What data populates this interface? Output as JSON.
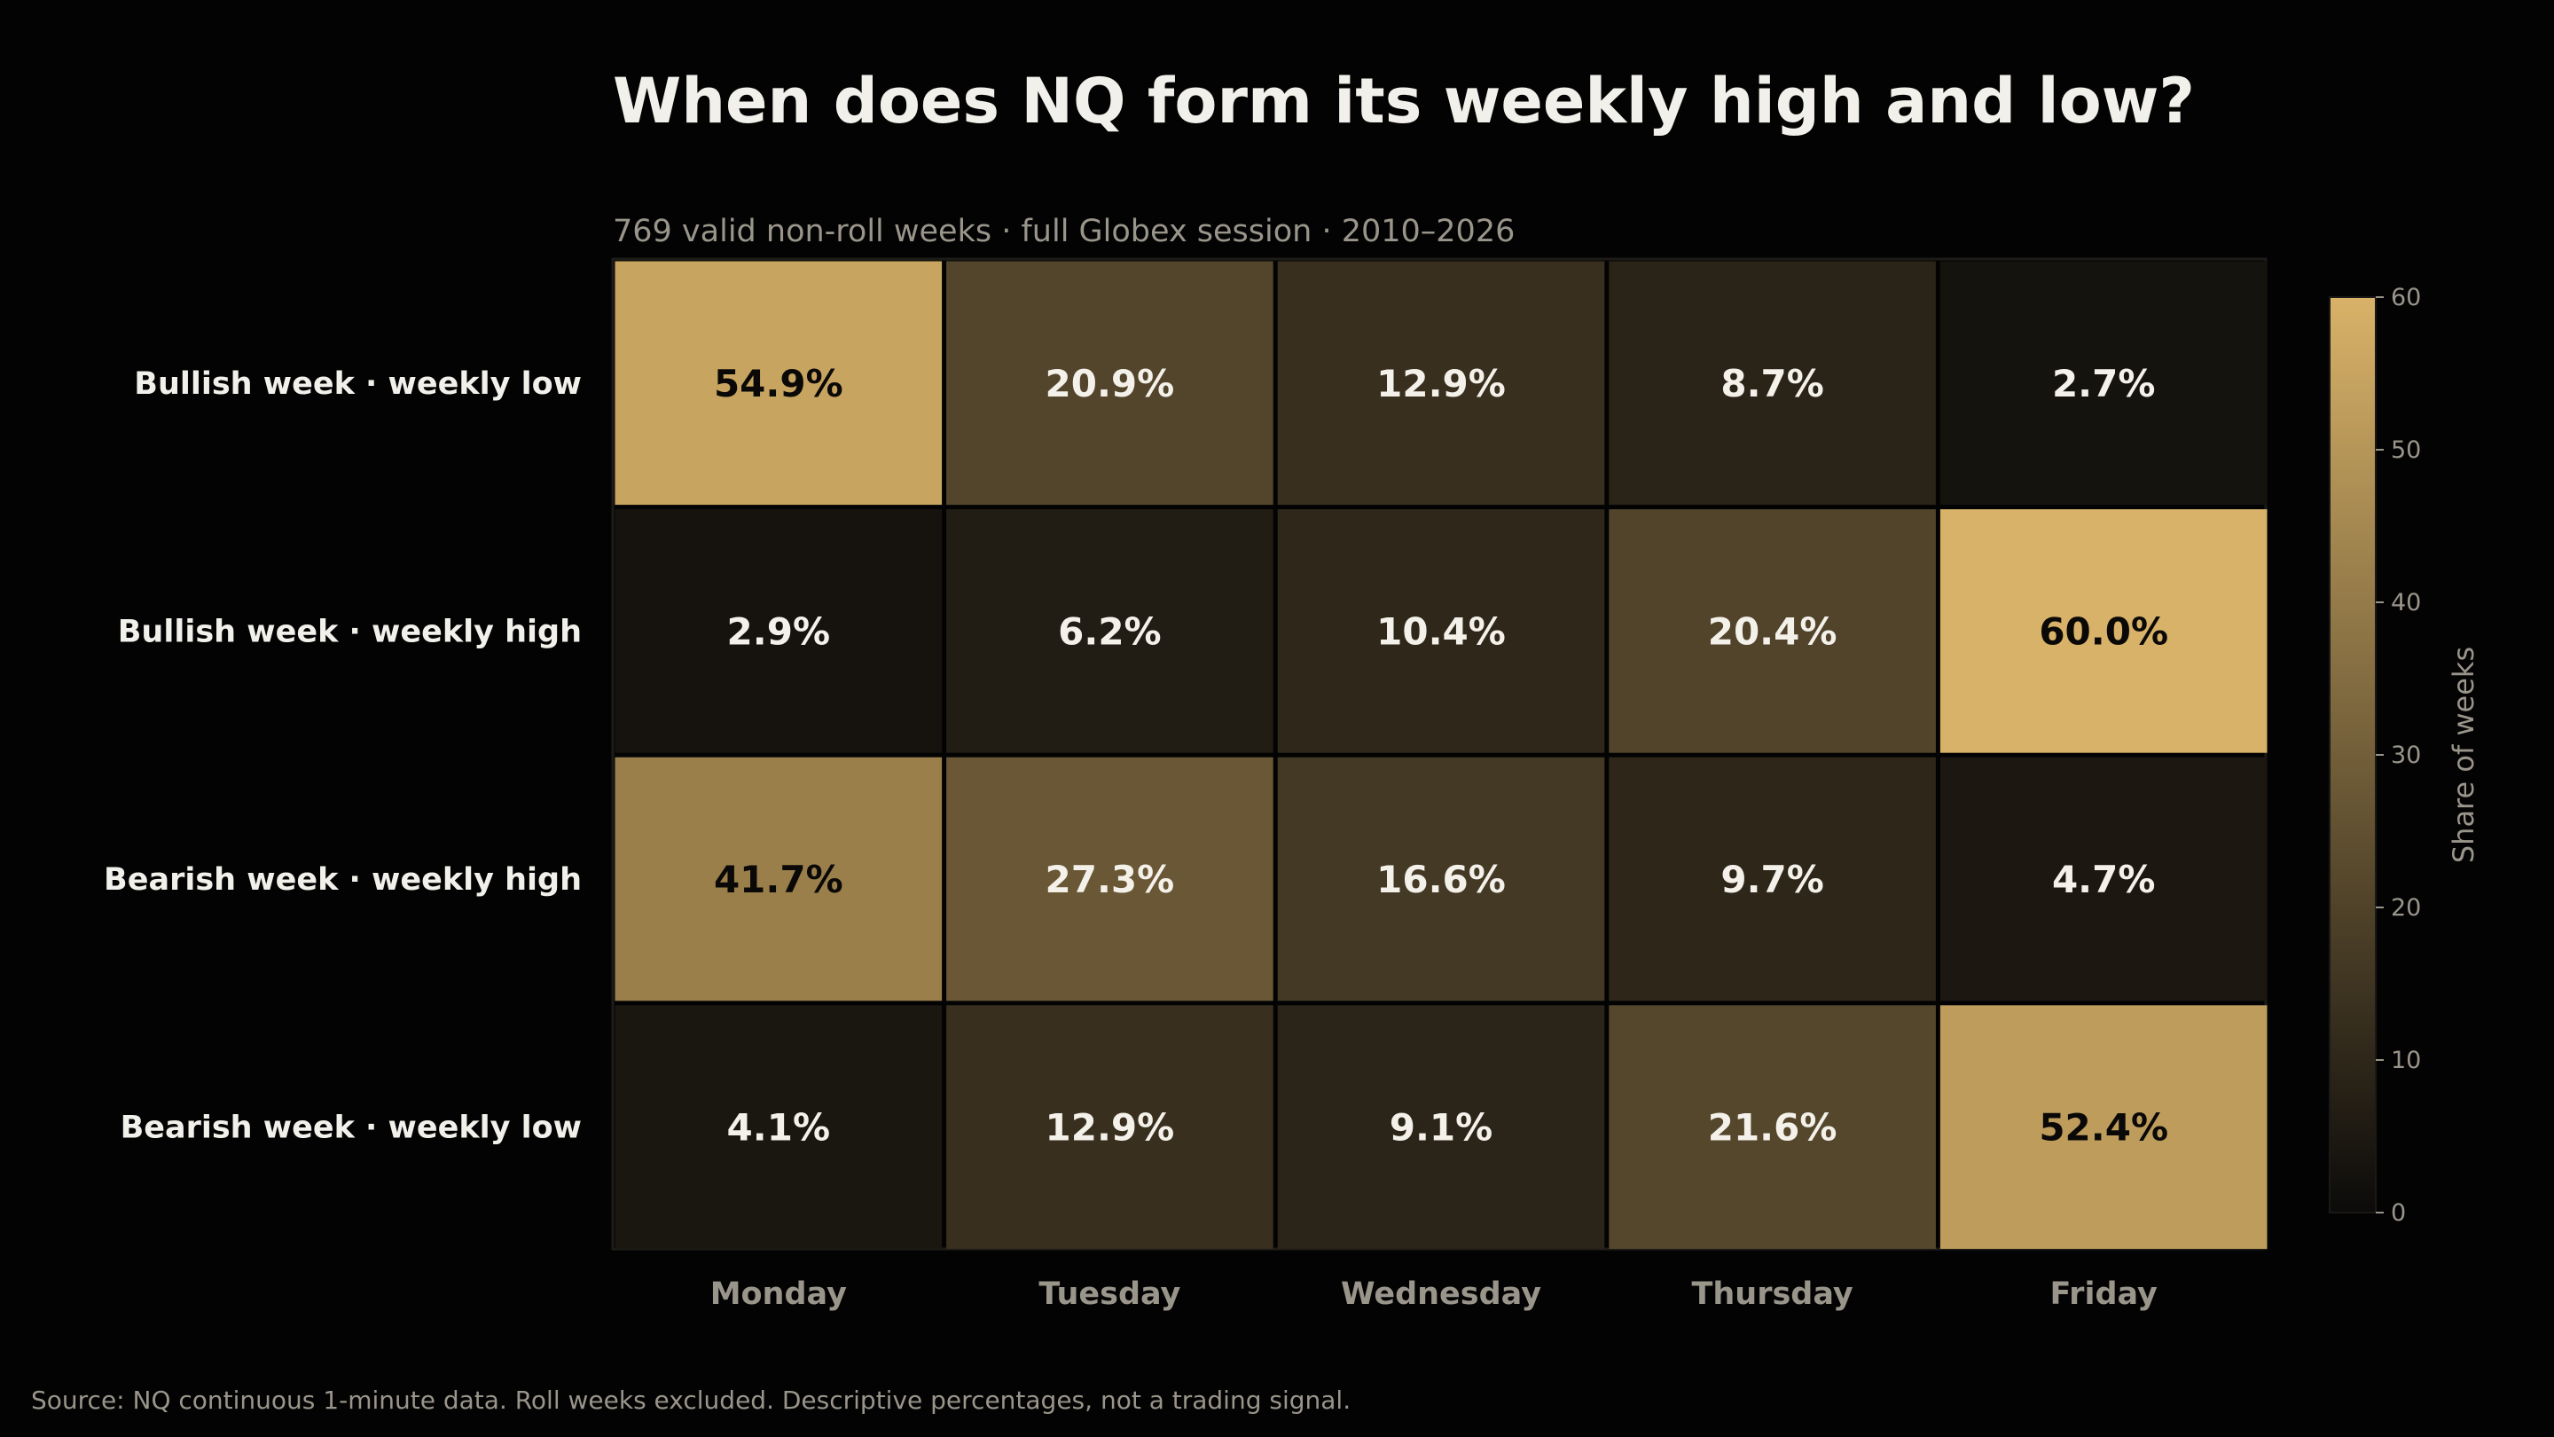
{
  "chart_data": {
    "type": "heatmap",
    "title": "When does NQ form its weekly high and low?",
    "subtitle": "769 valid non-roll weeks · full Globex session · 2010–2026",
    "rows": [
      "Bullish week · weekly low",
      "Bullish week · weekly high",
      "Bearish week · weekly high",
      "Bearish week · weekly low"
    ],
    "columns": [
      "Monday",
      "Tuesday",
      "Wednesday",
      "Thursday",
      "Friday"
    ],
    "values": [
      [
        54.9,
        20.9,
        12.9,
        8.7,
        2.7
      ],
      [
        2.9,
        6.2,
        10.4,
        20.4,
        60.0
      ],
      [
        41.7,
        27.3,
        16.6,
        9.7,
        4.7
      ],
      [
        4.1,
        12.9,
        9.1,
        21.6,
        52.4
      ]
    ],
    "cell_labels": [
      [
        "54.9%",
        "20.9%",
        "12.9%",
        "8.7%",
        "2.7%"
      ],
      [
        "2.9%",
        "6.2%",
        "10.4%",
        "20.4%",
        "60.0%"
      ],
      [
        "41.7%",
        "27.3%",
        "16.6%",
        "9.7%",
        "4.7%"
      ],
      [
        "4.1%",
        "12.9%",
        "9.1%",
        "21.6%",
        "52.4%"
      ]
    ],
    "colorbar": {
      "label": "Share of weeks",
      "range": [
        0,
        60
      ],
      "ticks": [
        "0",
        "10",
        "20",
        "30",
        "40",
        "50",
        "60"
      ],
      "color_low": "#0c0b0a",
      "color_high": "#d8b268"
    },
    "source": "Source: NQ continuous 1-minute data. Roll weeks excluded. Descriptive percentages, not a trading signal."
  }
}
